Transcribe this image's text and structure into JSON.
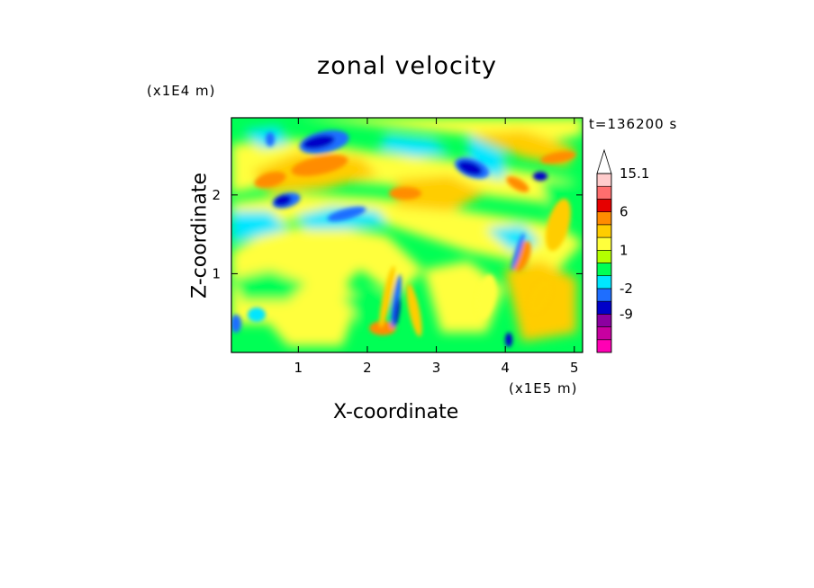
{
  "chart_data": {
    "type": "heatmap",
    "title": "zonal velocity",
    "xlabel": "X-coordinate",
    "ylabel": "Z-coordinate",
    "x_unit_label": "(x1E5 m)",
    "y_unit_label": "(x1E4 m)",
    "time_label": "t=136200 s",
    "xlim": [
      0.03,
      5.12
    ],
    "ylim": [
      0.0,
      2.98
    ],
    "x_ticks": [
      1,
      2,
      3,
      4,
      5
    ],
    "x_tick_labels": [
      "1",
      "2",
      "3",
      "4",
      "5"
    ],
    "y_ticks": [
      1,
      2
    ],
    "y_tick_labels": [
      "1",
      "2"
    ],
    "colorbar": {
      "levels": [
        -20,
        -15,
        -9,
        -5,
        -2,
        -1,
        0,
        1,
        2,
        3,
        6,
        9,
        12,
        15.1
      ],
      "labeled_ticks": [
        {
          "value": 15.1,
          "label": "15.1"
        },
        {
          "value": 6,
          "label": "6"
        },
        {
          "value": 1,
          "label": "1"
        },
        {
          "value": -2,
          "label": "-2"
        },
        {
          "value": -9,
          "label": "-9"
        }
      ],
      "colors": [
        "#ff00b4",
        "#c800a0",
        "#8c00a0",
        "#0000c8",
        "#1e6eff",
        "#00e6ff",
        "#00ff55",
        "#b4ff00",
        "#ffff3c",
        "#ffcd00",
        "#ff8c00",
        "#e60000",
        "#ff6e6e",
        "#ffcccc"
      ],
      "extend_max": true
    },
    "features": [
      {
        "x": 1.25,
        "z": 2.7,
        "value": -6
      },
      {
        "x": 0.75,
        "z": 1.95,
        "value": -6
      },
      {
        "x": 3.5,
        "z": 2.35,
        "value": -7
      },
      {
        "x": 2.35,
        "z": 0.5,
        "value": -9
      },
      {
        "x": 1.4,
        "z": 2.35,
        "value": 5
      },
      {
        "x": 1.2,
        "z": 1.75,
        "value": -2
      },
      {
        "x": 4.5,
        "z": 2.3,
        "value": -6
      }
    ]
  }
}
